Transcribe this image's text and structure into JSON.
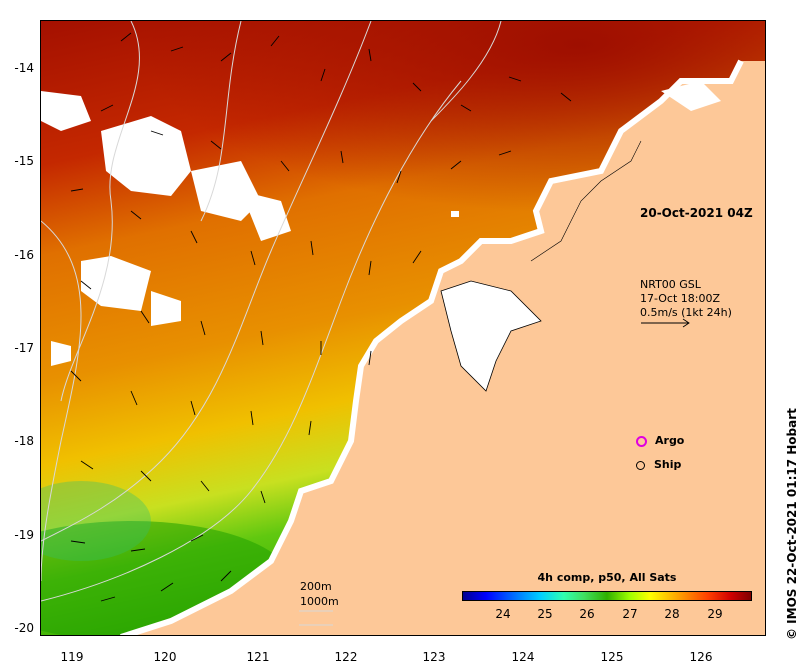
{
  "map": {
    "datetime": "20-Oct-2021 04Z",
    "credit": "© IMOS 22-Oct-2021 01:17 Hobart",
    "current": {
      "line1": "NRT00 GSL",
      "line2": "17-Oct 18:00Z",
      "line3": "0.5m/s (1kt 24h)"
    },
    "legend": {
      "argo": "Argo",
      "ship": "Ship"
    },
    "bathymetry": {
      "label1": "200m",
      "label2": "1000m"
    },
    "colorbar": {
      "title": "4h comp, p50, All Sats",
      "ticks": [
        "24",
        "25",
        "26",
        "27",
        "28",
        "29"
      ]
    },
    "axes": {
      "lat_ticks": [
        "-14",
        "-15",
        "-16",
        "-17",
        "-18",
        "-19",
        "-20"
      ],
      "lon_ticks": [
        "119",
        "120",
        "121",
        "122",
        "123",
        "124",
        "125",
        "126"
      ]
    },
    "colors": {
      "land": "#fdc898",
      "cloud": "#ffffff",
      "hot": "#a01200",
      "warm": "#e07400",
      "mid": "#f0c000",
      "cool": "#40c000"
    }
  }
}
